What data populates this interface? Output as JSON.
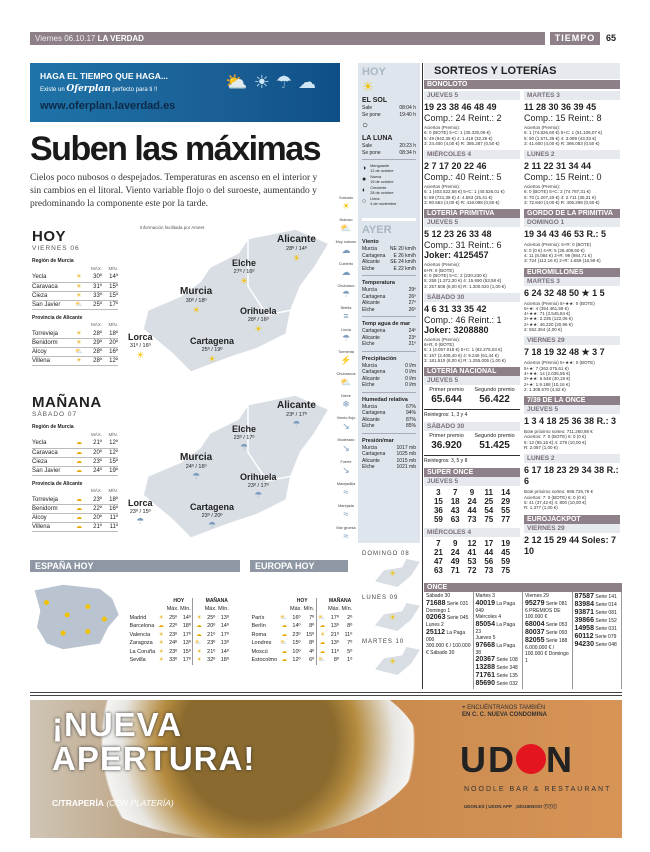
{
  "header": {
    "date": "Viernes 06.10.17",
    "paper": "LA VERDAD",
    "section": "TIEMPO",
    "page": "65"
  },
  "banner": {
    "line1": "HAGA EL TIEMPO QUE HAGA...",
    "line2a": "Existe un",
    "brand": "Oferplan",
    "line2b": "perfecto para ti !!",
    "url": "www.oferplan.laverdad.es"
  },
  "article": {
    "title": "Suben las máximas",
    "lead": "Cielos poco nubosos o despejados. Temperaturas en ascenso en el interior y sin cambios en el litoral. Viento variable flojo o del suroeste, aumentando y predominando la componente este por la tarde.",
    "credit": "Información facilitada por Ameet"
  },
  "legend": [
    {
      "label": "Soleado",
      "icon": "sun"
    },
    {
      "label": "Nuboso",
      "icon": "sun-cloud"
    },
    {
      "label": "Muy nuboso",
      "icon": "cloud"
    },
    {
      "label": "Cubierto",
      "icon": "cloud-outline"
    },
    {
      "label": "Chubasco",
      "icon": "cloud-rain"
    },
    {
      "label": "Niebla",
      "icon": "fog"
    },
    {
      "label": "Lluvia",
      "icon": "rain"
    },
    {
      "label": "Tormenta",
      "icon": "storm"
    },
    {
      "label": "Chubascos",
      "icon": "sun-rain"
    },
    {
      "label": "Nieve",
      "icon": "snow"
    },
    {
      "label": "Viento flojo",
      "icon": "wind"
    },
    {
      "label": "Moderado",
      "icon": "wind"
    },
    {
      "label": "Fuerte",
      "icon": "wind"
    },
    {
      "label": "Marejadilla",
      "icon": "waves"
    },
    {
      "label": "Marejada",
      "icon": "waves"
    },
    {
      "label": "Mar gruesa",
      "icon": "waves"
    }
  ],
  "forecast": [
    {
      "title": "HOY",
      "date": "VIERNES 06",
      "g1": "Región de Murcia",
      "g2": "Provincia de Alicante",
      "max": "MÁX.",
      "min": "MÍN.",
      "murcia": [
        [
          "Yecla",
          "☀",
          "30º",
          "14º"
        ],
        [
          "Caravaca",
          "☀",
          "31º",
          "15º"
        ],
        [
          "Cieza",
          "☀",
          "33º",
          "15º"
        ],
        [
          "San Javier",
          "⛅",
          "25º",
          "17º"
        ]
      ],
      "alicante": [
        [
          "Torrevieja",
          "☀",
          "28º",
          "18º"
        ],
        [
          "Benidorm",
          "☀",
          "29º",
          "20º"
        ],
        [
          "Alcoy",
          "⛅",
          "28º",
          "16º"
        ],
        [
          "Villena",
          "☀",
          "28º",
          "12º"
        ]
      ],
      "map": [
        {
          "city": "Alicante",
          "t": "28º / 14º"
        },
        {
          "city": "Elche",
          "t": "27º / 16º"
        },
        {
          "city": "Murcia",
          "t": "30º / 18º"
        },
        {
          "city": "Orihuela",
          "t": "28º / 16º"
        },
        {
          "city": "Lorca",
          "t": "31º / 16º"
        },
        {
          "city": "Cartagena",
          "t": "25º / 19º"
        }
      ]
    },
    {
      "title": "MAÑANA",
      "date": "SÁBADO 07",
      "g1": "Región de Murcia",
      "g2": "Provincia de Alicante",
      "max": "MÁX.",
      "min": "MÍN.",
      "murcia": [
        [
          "Yecla",
          "☁",
          "21º",
          "12º"
        ],
        [
          "Caravaca",
          "☁",
          "20º",
          "12º"
        ],
        [
          "Cieza",
          "☁",
          "23º",
          "15º"
        ],
        [
          "San Javier",
          "☁",
          "24º",
          "19º"
        ]
      ],
      "alicante": [
        [
          "Torrevieja",
          "☁",
          "23º",
          "18º"
        ],
        [
          "Benidorm",
          "☁",
          "22º",
          "16º"
        ],
        [
          "Alcoy",
          "☁",
          "20º",
          "11º"
        ],
        [
          "Villena",
          "☁",
          "21º",
          "11º"
        ]
      ],
      "map": [
        {
          "city": "Alicante",
          "t": "23º / 17º"
        },
        {
          "city": "Elche",
          "t": "23º / 17º"
        },
        {
          "city": "Murcia",
          "t": "24º / 16º"
        },
        {
          "city": "Orihuela",
          "t": "23º / 17º"
        },
        {
          "city": "Lorca",
          "t": "23º / 15º"
        },
        {
          "city": "Cartagena",
          "t": "23º / 20º"
        }
      ]
    }
  ],
  "spain": {
    "title": "ESPAÑA HOY",
    "hoy": "HOY",
    "man": "MAÑANA",
    "maxmin": "Máx. Mín.",
    "rows": [
      [
        "Madrid",
        "☀",
        "25º",
        "14º",
        "☀",
        "25º",
        "13º"
      ],
      [
        "Barcelona",
        "☁",
        "22º",
        "18º",
        "☁",
        "20º",
        "14º"
      ],
      [
        "Valencia",
        "☀",
        "23º",
        "17º",
        "☁",
        "21º",
        "17º"
      ],
      [
        "Zaragoza",
        "☀",
        "24º",
        "13º",
        "⛅",
        "23º",
        "13º"
      ],
      [
        "La Coruña",
        "☀",
        "23º",
        "15º",
        "☀",
        "21º",
        "14º"
      ],
      [
        "Sevilla",
        "☀",
        "33º",
        "17º",
        "☀",
        "32º",
        "18º"
      ]
    ]
  },
  "europe": {
    "title": "EUROPA HOY",
    "rows": [
      [
        "París",
        "⛅",
        "16º",
        "7º",
        "⛅",
        "17º",
        "2º"
      ],
      [
        "Berlín",
        "☁",
        "14º",
        "8º",
        "☁",
        "13º",
        "8º"
      ],
      [
        "Roma",
        "☁",
        "23º",
        "15º",
        "☀",
        "21º",
        "11º"
      ],
      [
        "Londres",
        "⛅",
        "15º",
        "8º",
        "☁",
        "13º",
        "7º"
      ],
      [
        "Moscú",
        "☁",
        "10º",
        "4º",
        "☁",
        "11º",
        "5º"
      ],
      [
        "Estocolmo",
        "☁",
        "12º",
        "6º",
        "⛅",
        "8º",
        "1º"
      ]
    ]
  },
  "side": {
    "hoy": "HOY",
    "sol": "EL SOL",
    "sun": [
      [
        "Sale",
        "08:04 h"
      ],
      [
        "Se pone",
        "19:40 h"
      ]
    ],
    "luna": "LA LUNA",
    "moon": [
      [
        "Sale",
        "20:23 h"
      ],
      [
        "Se pone",
        "08:34 h"
      ]
    ],
    "phases": [
      [
        "Menguante",
        "12 de octubre"
      ],
      [
        "Nueva",
        "19 de octubre"
      ],
      [
        "Creciente",
        "28 de octubre"
      ],
      [
        "Llena",
        "4 de noviembre"
      ]
    ],
    "ayer": "AYER",
    "groups": [
      {
        "t": "Viento",
        "r": [
          [
            "Murcia",
            "NE 20 km/h"
          ],
          [
            "Cartagena",
            "E 26 km/h"
          ],
          [
            "Alicante",
            "SE 24 km/h"
          ],
          [
            "Elche",
            "E 22 km/h"
          ]
        ]
      },
      {
        "t": "Temperatura",
        "r": [
          [
            "Murcia",
            "29º"
          ],
          [
            "Cartagena",
            "26º"
          ],
          [
            "Alicante",
            "27º"
          ],
          [
            "Elche",
            "26º"
          ]
        ]
      },
      {
        "t": "Temp agua de mar",
        "r": [
          [
            "Cartagena",
            "24º"
          ],
          [
            "Alicante",
            "23º"
          ],
          [
            "Elche",
            "21º"
          ]
        ]
      },
      {
        "t": "Precipitación",
        "r": [
          [
            "Murcia",
            "0 l/m"
          ],
          [
            "Cartagena",
            "0 l/m"
          ],
          [
            "Alicante",
            "0 l/m"
          ],
          [
            "Elche",
            "0 l/m"
          ]
        ]
      },
      {
        "t": "Humedad relativa",
        "r": [
          [
            "Murcia",
            "67%"
          ],
          [
            "Cartagena",
            "94%"
          ],
          [
            "Alicante",
            "87%"
          ],
          [
            "Elche",
            "85%"
          ]
        ]
      },
      {
        "t": "Presión/mar",
        "r": [
          [
            "Murcia",
            "1017 mb"
          ],
          [
            "Cartagena",
            "1025 mb"
          ],
          [
            "Alicante",
            "1015 mb"
          ],
          [
            "Elche",
            "1021 mb"
          ]
        ]
      }
    ],
    "days": [
      "DOMINGO 08",
      "LUNES 09",
      "MARTES 10"
    ]
  },
  "lottery": {
    "title": "SORTEOS Y LOTERÍAS",
    "top": "BONOLOTO",
    "left": [
      {
        "k": "d",
        "day": "JUEVES 5",
        "nums": "19 23 38 46 48 49",
        "l2": "Comp.: 24 Reint.: 2",
        "prz": [
          "Aciertos (Premio):",
          "6: 0 (BOTE) 5+C: 1 (30.330,09 €)",
          "5: 49 (942,35 €) 4: 1.418 (32,26 €)",
          "3: 24.400 (4,00 €) R: 386.287 (0,50 €)"
        ]
      },
      {
        "k": "d",
        "day": "MIÉRCOLES 4",
        "nums": "2 7 17 20 22 46",
        "l2": "Comp.: 40 Reint.: 5",
        "prz": [
          "Aciertos (Premio):",
          "6: 1 (403.522,58 €) 5+C: 1 (40.526,01 €)",
          "5: 69 (721,38 €) 4: 4.553 (25,41 €)",
          "3: 80.663 (4,00 €) R: 416.098 (0,50 €)"
        ]
      },
      {
        "k": "h",
        "t": "LOTERÍA PRIMITIVA"
      },
      {
        "k": "d",
        "day": "JUEVES 5",
        "nums": "5 12 23 26 33 48",
        "l2": "Comp.: 31 Reint.: 6",
        "l3": "Joker: 4125457",
        "prz": [
          "Aciertos (Premio):",
          "6+R: 0 (BOTE)",
          "6: 0 (BOTE) 5+C: 2 (230.230 €)",
          "5: 258 (1.372,30 €) 4: 15.690 (53,58 €)",
          "3: 257.508 (8,00 €) R: 1.300.020 (1,00 €)"
        ]
      },
      {
        "k": "d",
        "day": "SÁBADO 30",
        "nums": "4 6 31 33 35 42",
        "l2": "Comp.: 46 Reint.: 1",
        "l3": "Joker: 3208880",
        "prz": [
          "Aciertos (Premio):",
          "6+R: 0 (BOTE)",
          "6: 1 (4.057.018 €) 5+C: 1 (82.275,03 €)",
          "5: 167 (2.408,40 €) 4: 9.246 (61,44 €)",
          "3: 181.510 (8,00 €) R: 1.255.005 (1,00 €)"
        ]
      },
      {
        "k": "h",
        "t": "LOTERÍA NACIONAL"
      },
      {
        "k": "n",
        "day": "JUEVES 5",
        "p1l": "Primer premio",
        "p1": "65.644",
        "p2l": "Segundo premio",
        "p2": "56.422",
        "r": "Reintegros: 1, 3 y 4"
      },
      {
        "k": "n",
        "day": "SÁBADO 30",
        "p1l": "Primer premio",
        "p1": "36.920",
        "p2l": "Segundo premio",
        "p2": "51.425",
        "r": "Reintegros: 3, 5 y 8"
      },
      {
        "k": "h",
        "t": "SUPER ONCE"
      },
      {
        "k": "g",
        "day": "JUEVES 5",
        "nums": [
          "3",
          "7",
          "9",
          "11",
          "14",
          "15",
          "18",
          "24",
          "25",
          "29",
          "36",
          "43",
          "44",
          "54",
          "55",
          "59",
          "63",
          "73",
          "75",
          "77"
        ]
      },
      {
        "k": "g",
        "day": "MIÉRCOLES 4",
        "nums": [
          "7",
          "9",
          "12",
          "17",
          "19",
          "21",
          "24",
          "41",
          "44",
          "45",
          "47",
          "49",
          "53",
          "56",
          "59",
          "63",
          "71",
          "72",
          "73",
          "75"
        ]
      }
    ],
    "right": [
      {
        "k": "d",
        "day": "MARTES 3",
        "nums": "11 28 30 36 39 45",
        "l2": "Comp.: 15 Reint.: 8",
        "prz": [
          "Aciertos (Premio):",
          "6: 1 (74.826,60 €) 5+C: 1 (51.108,07 €)",
          "5: 50 (1.571,35 €) 4: 3.089 (43,33 €)",
          "3: 41.600 (4,00 €) R: 396.083 (0,50 €)"
        ]
      },
      {
        "k": "d",
        "day": "LUNES 2",
        "nums": "2 11 22 31 34 44",
        "l2": "Comp.: 15 Reint.: 0",
        "prz": [
          "Aciertos (Premio):",
          "6: 0 (BOTE) 5+C: 2 (74.787,31 €)",
          "5: 70 (1.207,40 €) 4: 2.711 (35,31 €)",
          "3: 72.840 (4,00 €) R: 406.298 (0,50 €)"
        ]
      },
      {
        "k": "h",
        "t": "GORDO DE LA PRIMITIVA"
      },
      {
        "k": "d",
        "day": "DOMINGO 1",
        "nums": "19 34 43 46 53 R.: 5",
        "prz": [
          "Aciertos (Premio): 5+R: 0 (BOTE)",
          "5: 0 (0 €) 4+R: 5 (26.409,60 €)",
          "4: 11 (8.084 €) 3+R: 99 (984,71 €)",
          "3: 724 (112,16 €) 2+R: 1.659 (16,59 €)"
        ]
      },
      {
        "k": "h",
        "t": "EUROMILLONES"
      },
      {
        "k": "d",
        "day": "MARTES 3",
        "nums": "6 24 32 48 50 ★ 1 5",
        "prz": [
          "Aciertos (Premio) 5+★★: 0 (BOTE)",
          "5+★: 4 (354.461,59 €)",
          "4+★★: 71 (3.545,84 €)",
          "3+★★: 2.235 (122,06 €)",
          "2+★★: 46.220 (20,96 €)",
          "2: 552.364 (4,00 €)"
        ]
      },
      {
        "k": "d",
        "day": "VIERNES 29",
        "nums": "7 18 19 32 48 ★ 3 7",
        "prz": [
          "Aciertos (Premio) 5+★★: 0 (BOTE)",
          "5+★: 7 (262.075,61 €)",
          "4+★★: 14 (2.035,55 €)",
          "3+★★: 6.548 (40,19 €)",
          "2+★: 1.9.188 (10,16 €)",
          "2: 1.308.570 (4,52 €)"
        ]
      },
      {
        "k": "h",
        "t": "7/39 DE LA ONCE"
      },
      {
        "k": "d",
        "day": "JUEVES 5",
        "nums": "1 3 4 18 25 36 38 R.: 3",
        "prz": [
          "Bote próximo sorteo: 711.260,88 €",
          "Aciertos: 7: 0 (BOTE) 6: 0 (0 €)",
          "5: 12 (95,15 €) 4: 279 (10,00 €)",
          "R: 2.087 (1,00 €)"
        ]
      },
      {
        "k": "d",
        "day": "LUNES 2",
        "nums": "6 17 18 23 29 34 38 R.: 6",
        "prz": [
          "Bote próximo sorteo: 695.726,76 €",
          "Aciertos: 7: 0 (BOTE) 6: 0 (0 €)",
          "5: 41 (37,42 €) 4: 800 (10,00 €)",
          "R: 1.377 (1,00 €)"
        ]
      },
      {
        "k": "h",
        "t": "EUROJACKPOT"
      },
      {
        "k": "d",
        "day": "VIERNES 29",
        "nums": "2 12 15 29 44 Soles: 7 10",
        "prz": []
      }
    ],
    "once": {
      "title": "ONCE",
      "cols": [
        [
          [
            "Sábado 30",
            ""
          ],
          [
            "71688",
            "Serie 031"
          ],
          [
            "Domingo 1",
            ""
          ],
          [
            "02063",
            "Serie 045"
          ],
          [
            "Lunes 2",
            ""
          ],
          [
            "25112",
            "La Paga 000"
          ],
          [
            "300.000 € / 100.000 €",
            "Sábado 30"
          ]
        ],
        [
          [
            "Martes 3",
            ""
          ],
          [
            "40019",
            "La Paga 049"
          ],
          [
            "Miércoles 4",
            ""
          ],
          [
            "85054",
            "La Paga 23"
          ],
          [
            "Jueves 5",
            ""
          ],
          [
            "97668",
            "La Paga 38"
          ],
          [
            "20367",
            "Serie 108"
          ],
          [
            "13288",
            "Serie 348"
          ],
          [
            "71761",
            "Serie 135"
          ],
          [
            "85690",
            "Serie 032"
          ]
        ],
        [
          [
            "Viernes 29",
            ""
          ],
          [
            "95279",
            "Serie 081"
          ],
          [
            "6 PREMIOS DE 100.000 €",
            ""
          ],
          [
            "68004",
            "Serie 053"
          ],
          [
            "80037",
            "Serie 093"
          ],
          [
            "82055",
            "Serie 188"
          ],
          [
            "6.000.000 € / 100.000 €",
            "Domingo 1"
          ]
        ],
        [
          [
            "87587",
            "Serie 141"
          ],
          [
            "83984",
            "Serie 014"
          ],
          [
            "93871",
            "Serie 081"
          ],
          [
            "39866",
            "Serie 152"
          ],
          [
            "14958",
            "Serie 031"
          ],
          [
            "60112",
            "Serie 079"
          ],
          [
            "94230",
            "Serie 048"
          ]
        ]
      ]
    }
  },
  "ad": {
    "headline1": "¡NUEVA",
    "headline2": "APERTURA!",
    "street": "C/TRAPERÍA",
    "street_note": "(CON PLATERÍA)",
    "find1": "ENCUÉNTRANOS TAMBIÉN",
    "find2": "EN C. C. NUEVA CONDOMINA",
    "logo": "UDON",
    "tagline": "NOODLE BAR & RESTAURANT",
    "web": "UDON.ES | UDON APP",
    "follow": "¡SÍGUENOS!",
    "logo_dot_color": "#e3151f"
  }
}
